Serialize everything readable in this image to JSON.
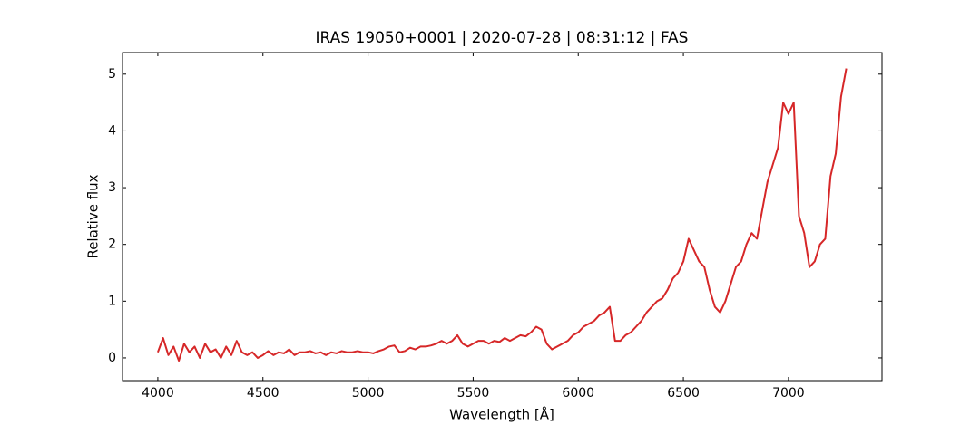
{
  "chart_data": {
    "type": "line",
    "title": "IRAS 19050+0001 | 2020-07-28 | 08:31:12 | FAS",
    "xlabel": "Wavelength [Å]",
    "ylabel": "Relative flux",
    "x": [
      4000,
      4025,
      4050,
      4075,
      4100,
      4125,
      4150,
      4175,
      4200,
      4225,
      4250,
      4275,
      4300,
      4325,
      4350,
      4375,
      4400,
      4425,
      4450,
      4475,
      4500,
      4525,
      4550,
      4575,
      4600,
      4625,
      4650,
      4675,
      4700,
      4725,
      4750,
      4775,
      4800,
      4825,
      4850,
      4875,
      4900,
      4925,
      4950,
      4975,
      5000,
      5025,
      5050,
      5075,
      5100,
      5125,
      5150,
      5175,
      5200,
      5225,
      5250,
      5275,
      5300,
      5325,
      5350,
      5375,
      5400,
      5425,
      5450,
      5475,
      5500,
      5525,
      5550,
      5575,
      5600,
      5625,
      5650,
      5675,
      5700,
      5725,
      5750,
      5775,
      5800,
      5825,
      5850,
      5875,
      5900,
      5925,
      5950,
      5975,
      6000,
      6025,
      6050,
      6075,
      6100,
      6125,
      6150,
      6175,
      6200,
      6225,
      6250,
      6275,
      6300,
      6325,
      6350,
      6375,
      6400,
      6425,
      6450,
      6475,
      6500,
      6525,
      6550,
      6575,
      6600,
      6625,
      6650,
      6675,
      6700,
      6725,
      6750,
      6775,
      6800,
      6825,
      6850,
      6875,
      6900,
      6925,
      6950,
      6975,
      7000,
      7025,
      7050,
      7075,
      7100,
      7125,
      7150,
      7175,
      7200,
      7225,
      7250,
      7275
    ],
    "values": [
      0.1,
      0.35,
      0.05,
      0.2,
      -0.05,
      0.25,
      0.1,
      0.2,
      0.0,
      0.25,
      0.1,
      0.15,
      0.0,
      0.2,
      0.05,
      0.3,
      0.1,
      0.05,
      0.1,
      0.0,
      0.05,
      0.12,
      0.05,
      0.1,
      0.08,
      0.15,
      0.05,
      0.1,
      0.1,
      0.12,
      0.08,
      0.1,
      0.05,
      0.1,
      0.08,
      0.12,
      0.1,
      0.1,
      0.12,
      0.1,
      0.1,
      0.08,
      0.12,
      0.15,
      0.2,
      0.22,
      0.1,
      0.12,
      0.18,
      0.15,
      0.2,
      0.2,
      0.22,
      0.25,
      0.3,
      0.25,
      0.3,
      0.4,
      0.25,
      0.2,
      0.25,
      0.3,
      0.3,
      0.25,
      0.3,
      0.28,
      0.35,
      0.3,
      0.35,
      0.4,
      0.38,
      0.45,
      0.55,
      0.5,
      0.25,
      0.15,
      0.2,
      0.25,
      0.3,
      0.4,
      0.45,
      0.55,
      0.6,
      0.65,
      0.75,
      0.8,
      0.9,
      0.3,
      0.3,
      0.4,
      0.45,
      0.55,
      0.65,
      0.8,
      0.9,
      1.0,
      1.05,
      1.2,
      1.4,
      1.5,
      1.7,
      2.1,
      1.9,
      1.7,
      1.6,
      1.2,
      0.9,
      0.8,
      1.0,
      1.3,
      1.6,
      1.7,
      2.0,
      2.2,
      2.1,
      2.6,
      3.1,
      3.4,
      3.7,
      4.5,
      4.3,
      4.5,
      2.5,
      2.2,
      1.6,
      1.7,
      2.0,
      2.1,
      3.2,
      3.6,
      4.6,
      5.1
    ],
    "color": "#d62728",
    "xlim": [
      3832,
      7445
    ],
    "ylim": [
      -0.4,
      5.38
    ],
    "xticks": [
      4000,
      4500,
      5000,
      5500,
      6000,
      6500,
      7000
    ],
    "yticks": [
      0,
      1,
      2,
      3,
      4,
      5
    ]
  }
}
